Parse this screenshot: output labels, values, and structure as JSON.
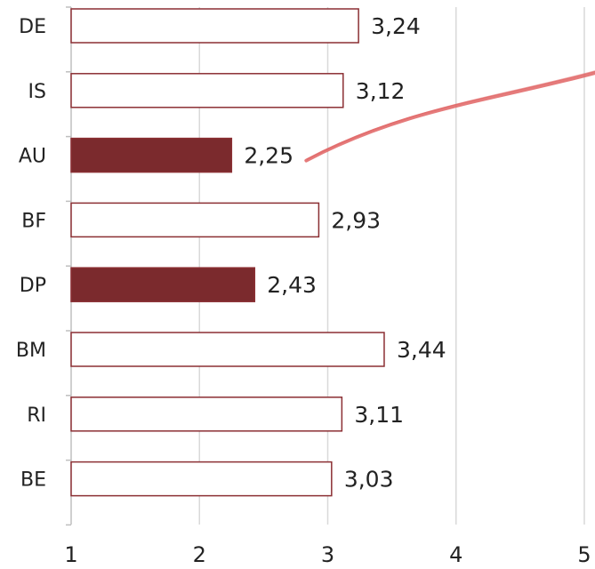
{
  "chart_data": {
    "type": "bar",
    "orientation": "horizontal",
    "categories": [
      "DE",
      "IS",
      "AU",
      "BF",
      "DP",
      "BM",
      "RI",
      "BE"
    ],
    "values": [
      3.24,
      3.12,
      2.25,
      2.93,
      2.43,
      3.44,
      3.11,
      3.03
    ],
    "value_labels": [
      "3,24",
      "3,12",
      "2,25",
      "2,93",
      "2,43",
      "3,44",
      "3,11",
      "3,03"
    ],
    "highlighted": [
      "AU",
      "DP"
    ],
    "xlim": [
      1,
      5
    ],
    "xticks": [
      1,
      2,
      3,
      4,
      5
    ],
    "xtick_labels": [
      "1",
      "2",
      "3",
      "4",
      "5"
    ],
    "grid": "vertical",
    "colors": {
      "highlight_fill": "#7b2a2d",
      "bar_outline": "#8b2f33",
      "normal_fill": "#ffffff",
      "grid": "#d9d9d9",
      "axis": "#bfbfbf",
      "annotation": "#e06464"
    },
    "annotation": {
      "type": "hand-drawn-line",
      "from_category": "AU",
      "direction": "up-right"
    }
  }
}
